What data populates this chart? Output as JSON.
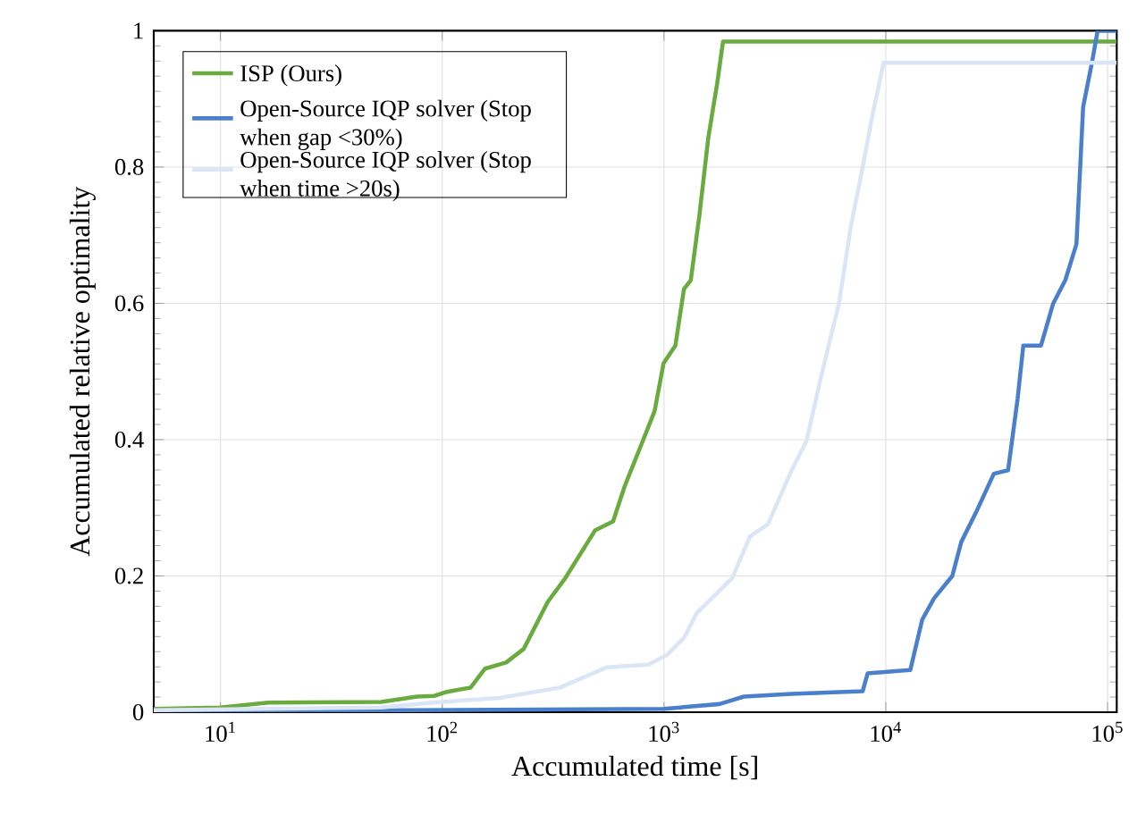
{
  "chart_data": {
    "type": "line",
    "xlabel": "Accumulated time [s]",
    "ylabel": "Accumulated relative optimality",
    "log": "x",
    "grid": true,
    "legend": "top left",
    "marker": "none",
    "line_style": "solid",
    "xlim": [
      5,
      110000
    ],
    "ylim": [
      0,
      1
    ],
    "xticks": [
      {
        "value": 10,
        "label": "10$^{1}$"
      },
      {
        "value": 100,
        "label": "10$^{2}$"
      },
      {
        "value": 1000,
        "label": "10$^{3}$"
      },
      {
        "value": 10000,
        "label": "10$^{4}$"
      },
      {
        "value": 100000,
        "label": "10$^{5}$"
      }
    ],
    "yticks": [
      0,
      0.2,
      0.4,
      0.6,
      0.8,
      1
    ],
    "series": [
      {
        "name": "ISP (Ours)",
        "color": "#6aab3f",
        "x": [
          5,
          10,
          16.4,
          53,
          77,
          92,
          105,
          134,
          156,
          194,
          233,
          299,
          359,
          489,
          589,
          667,
          802,
          907,
          995,
          1125,
          1230,
          1320,
          1445,
          1585,
          1735,
          1845,
          110000
        ],
        "values": [
          0.005,
          0.007,
          0.014,
          0.015,
          0.023,
          0.024,
          0.03,
          0.036,
          0.064,
          0.073,
          0.093,
          0.162,
          0.197,
          0.267,
          0.28,
          0.333,
          0.398,
          0.442,
          0.512,
          0.538,
          0.621,
          0.634,
          0.73,
          0.844,
          0.922,
          0.984,
          0.984
        ]
      },
      {
        "name": "Open-Source IQP solver (Stop when gap <30%)",
        "color": "#4a7fcb",
        "x": [
          5,
          1000,
          1780,
          2290,
          3750,
          7870,
          8280,
          12900,
          14600,
          16500,
          19950,
          21900,
          25500,
          30700,
          35600,
          39300,
          41700,
          50100,
          56900,
          64500,
          72400,
          77600,
          85000,
          90200,
          110000
        ],
        "values": [
          0.001,
          0.005,
          0.012,
          0.023,
          0.027,
          0.031,
          0.057,
          0.062,
          0.136,
          0.167,
          0.2,
          0.25,
          0.293,
          0.35,
          0.355,
          0.46,
          0.538,
          0.538,
          0.6,
          0.634,
          0.687,
          0.888,
          0.953,
          1.0,
          1.0
        ]
      },
      {
        "name": "Open-Source IQP solver (Stop when time >20s)",
        "color": "#dae6f5",
        "x": [
          5,
          53,
          98,
          182,
          338,
          553,
          850,
          1030,
          1235,
          1400,
          2030,
          2440,
          2940,
          3760,
          4390,
          5120,
          6150,
          6960,
          7870,
          8630,
          9780,
          110000
        ],
        "values": [
          0.003,
          0.007,
          0.015,
          0.021,
          0.036,
          0.066,
          0.07,
          0.084,
          0.11,
          0.145,
          0.197,
          0.258,
          0.276,
          0.355,
          0.398,
          0.494,
          0.6,
          0.713,
          0.8,
          0.87,
          0.953,
          0.953
        ]
      }
    ]
  }
}
